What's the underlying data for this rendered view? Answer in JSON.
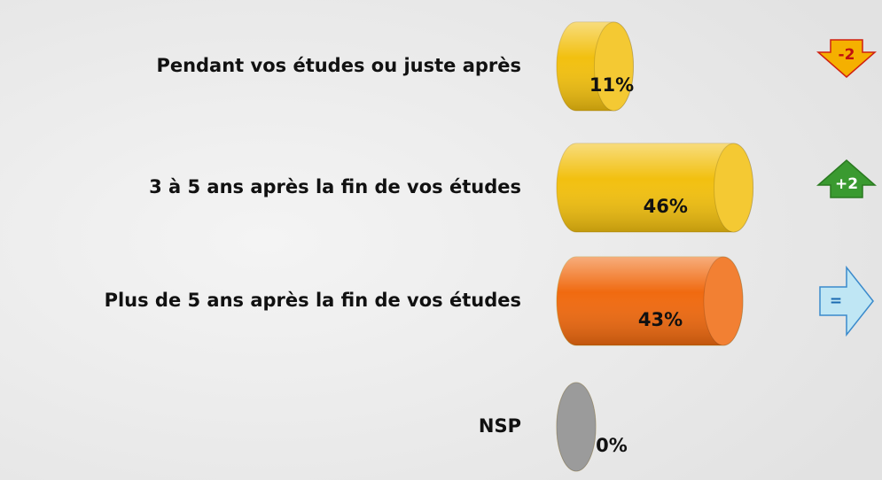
{
  "chart_data": {
    "type": "bar",
    "categories": [
      "Pendant vos études ou juste après",
      "3 à 5 ans après la fin de vos études",
      "Plus de 5 ans après la fin de vos études",
      "NSP"
    ],
    "values": [
      11,
      46,
      43,
      0
    ],
    "value_labels": [
      "11%",
      "46%",
      "43%",
      "0%"
    ],
    "colors": [
      "#f2c010",
      "#f2c010",
      "#f06a10",
      "#8a8a8a"
    ],
    "changes": [
      "-2",
      "+2",
      "=",
      null
    ],
    "xlim": [
      0,
      50
    ]
  }
}
